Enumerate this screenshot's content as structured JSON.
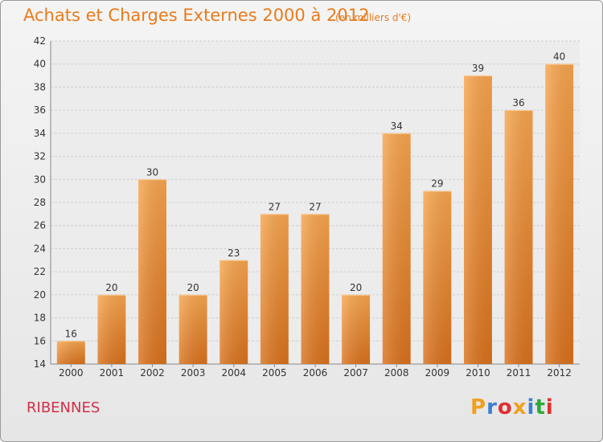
{
  "header": {
    "title": "Achats et Charges Externes 2000 à 2012",
    "unit": "(en milliers d'€)"
  },
  "footer": {
    "commune": "RIBENNES",
    "logo_letters": [
      "P",
      "r",
      "o",
      "x",
      "i",
      "t",
      "i"
    ],
    "logo_colors": [
      "#f0a020",
      "#3a7fd0",
      "#e03030",
      "#f0a020",
      "#3a7fd0",
      "#2eaa3a",
      "#e03030"
    ]
  },
  "colors": {
    "bar_light": "#f7a54e",
    "bar_dark": "#d9711c",
    "title": "#e87b1c",
    "commune": "#d0304a",
    "grid": "#cfcfcf"
  },
  "chart_data": {
    "type": "bar",
    "categories": [
      "2000",
      "2001",
      "2002",
      "2003",
      "2004",
      "2005",
      "2006",
      "2007",
      "2008",
      "2009",
      "2010",
      "2011",
      "2012"
    ],
    "values": [
      16,
      20,
      30,
      20,
      23,
      27,
      27,
      20,
      34,
      29,
      39,
      36,
      40
    ],
    "ylim": [
      14,
      42
    ],
    "yticks": [
      14,
      16,
      18,
      20,
      22,
      24,
      26,
      28,
      30,
      32,
      34,
      36,
      38,
      40,
      42
    ],
    "grid": true,
    "data_labels": true
  }
}
